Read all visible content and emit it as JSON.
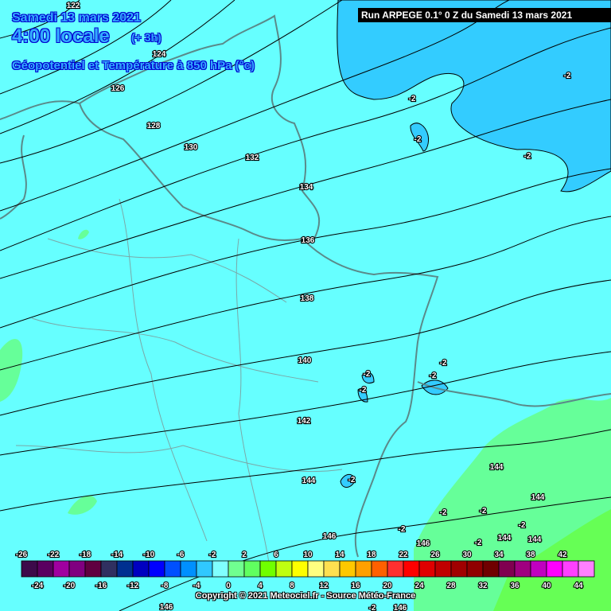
{
  "header": {
    "date": "Samedi 13 mars 2021",
    "time": "4:00 locale",
    "offset": "(+ 3h)",
    "parameter": "Géopotentiel et Température à 850 hPa (°c)",
    "run": "Run ARPEGE 0.1° 0 Z du Samedi 13 mars 2021"
  },
  "map": {
    "background_color": "#66ffff",
    "cold_area_color": "#33ccff",
    "warm_area_color": "#66ff99",
    "warmer_area_color": "#66ff55",
    "geopotential_labels": [
      "122",
      "124",
      "126",
      "128",
      "130",
      "132",
      "134",
      "136",
      "138",
      "140",
      "142",
      "144",
      "146",
      "146",
      "144",
      "144",
      "144",
      "144",
      "146",
      "146"
    ],
    "temperature_labels": [
      "-2",
      "-2",
      "-2",
      "-2",
      "-2",
      "-2",
      "-2",
      "-2",
      "-2",
      "-2",
      "-2",
      "-2",
      "-2",
      "-2",
      "-2"
    ]
  },
  "legend": {
    "colors": [
      "#3d0a4a",
      "#5a0060",
      "#a000a0",
      "#800080",
      "#600040",
      "#303060",
      "#003090",
      "#0000c0",
      "#0000ff",
      "#0050ff",
      "#0090ff",
      "#30c8ff",
      "#80ffff",
      "#70ff90",
      "#60ff60",
      "#70ff00",
      "#c0ff10",
      "#ffff00",
      "#ffff80",
      "#ffe050",
      "#ffc800",
      "#ffa000",
      "#ff6000",
      "#ff3030",
      "#ff0000",
      "#e00000",
      "#c00000",
      "#a00000",
      "#900000",
      "#700000",
      "#800050",
      "#a00080",
      "#c000c0",
      "#ff00ff",
      "#ff40ff",
      "#ff80ff"
    ],
    "top_labels": [
      "-26",
      "-22",
      "-18",
      "-14",
      "-10",
      "-6",
      "-2",
      "2",
      "6",
      "10",
      "14",
      "18",
      "22",
      "26",
      "30",
      "34",
      "38",
      "42"
    ],
    "bottom_labels": [
      "-24",
      "-20",
      "-16",
      "-12",
      "-8",
      "-4",
      "0",
      "4",
      "8",
      "12",
      "16",
      "20",
      "24",
      "28",
      "32",
      "36",
      "40",
      "44"
    ]
  },
  "footer": {
    "copyright": "Copyright © 2021 Meteociel.fr - Source Météo-France"
  }
}
